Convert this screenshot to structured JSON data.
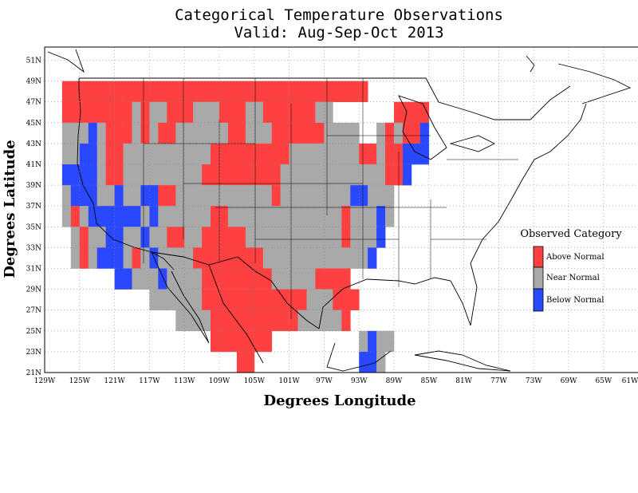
{
  "title": {
    "line1": "Categorical Temperature Observations",
    "line2": "Valid: Aug-Sep-Oct 2013"
  },
  "axes": {
    "xlabel": "Degrees Longitude",
    "ylabel": "Degrees Latitude",
    "x_ticks": [
      "129W",
      "125W",
      "121W",
      "117W",
      "113W",
      "109W",
      "105W",
      "101W",
      "97W",
      "93W",
      "89W",
      "85W",
      "81W",
      "77W",
      "73W",
      "69W",
      "65W",
      "61W"
    ],
    "y_ticks": [
      "51N",
      "49N",
      "47N",
      "45N",
      "43N",
      "41N",
      "39N",
      "37N",
      "35N",
      "33N",
      "31N",
      "29N",
      "27N",
      "25N",
      "23N",
      "21N"
    ],
    "grid": true
  },
  "legend": {
    "title": "Observed Category",
    "placement": "right",
    "items": [
      {
        "label": "Above Normal",
        "color": "#ff4040"
      },
      {
        "label": "Near Normal",
        "color": "#a9a9a9"
      },
      {
        "label": "Below Normal",
        "color": "#2a48ff"
      }
    ]
  },
  "colors": {
    "A": "#ff4040",
    "N": "#a9a9a9",
    "B": "#2a48ff"
  },
  "chart_data": {
    "type": "heatmap",
    "lon_range": [
      -129,
      -61
    ],
    "lat_range": [
      21,
      52
    ],
    "cell_size_degrees": 2,
    "grid_top_left": {
      "lon": -127,
      "lat": 49
    },
    "categories": [
      "Above Normal",
      "Near Normal",
      "Below Normal"
    ],
    "rows": [
      "..AAAAAAAAAAAAAAAAAAAAAAAAAAAAAAAAAAA...............",
      "..AAAAAAAANANNAAANNNAAANNAAAAAANN.......AAAA........",
      "..NNNBNAAANANAANNNNNNAANNNAAAAAANNNN..NANAAB........",
      "..NNBBNAANNNNNNNNNNAAAAAAAAANNNNNNNNAANAABBB........",
      "..BBBBNAANNNNNNNNNAAAAAAAAANNNNNNNNNNNNAAB..........",
      "..NBBBNNBNNBBAANNNNNNNNNNNANNNNNNNNBBNNN............",
      "..NANBBBBBBNBNNNNNNAANNNNNNNNNNNNNANNNBN............",
      "...NANNBBNNBNNAANNAAAAANNNNNNNNNNNANNNB.............",
      "...NANBBBNANBNNNNAAAAAAAANNNNNNNNNNNNB..............",
      "........BBNNNBNNNNAAAAAAAANNNNNAAAA.................",
      "............NNNNNNAAAAAAAAAAAANNNAAA................",
      "...............NNNNAAAAAAAAAANNNNNA.................",
      "...................AAAAAAA..........NBNN............",
      "......................AA............BBN............."
    ]
  },
  "cities_marker": "star"
}
